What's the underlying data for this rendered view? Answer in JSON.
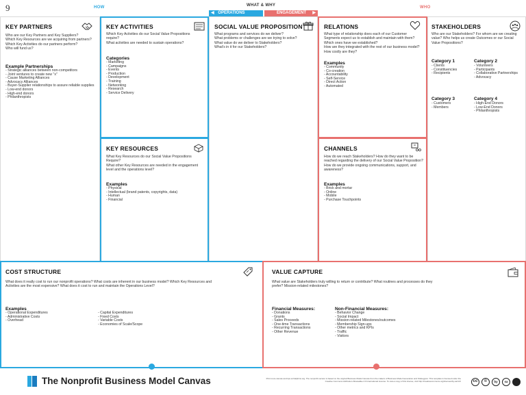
{
  "page_number": "9",
  "labels": {
    "how": "HOW",
    "what_why": "WHAT & WHY",
    "who": "WHO",
    "operations": "OPERATIONS",
    "engagement": "ENGAGEMENT"
  },
  "colors": {
    "blue": "#2aa8e0",
    "red": "#e8706e"
  },
  "key_partners": {
    "title": "KEY PARTNERS",
    "icon": "handshake-icon",
    "questions": "Who are our Key Partners and Key Suppliers?\nWhich Key Resources are we acquiring from partners?\nWhich Key Activities do our partners perform?\nWho will fund us?",
    "examples_title": "Example Partnerships",
    "examples": [
      "Strategic alliances between non-competitors",
      "Joint ventures to create new \"x\"",
      "Cause Marketing Alliances",
      "Advocacy Alliances",
      "Buyer-Supplier relationships to assure reliable supplies",
      "Low-end donors",
      "High-end donors",
      "Philanthropists"
    ]
  },
  "key_activities": {
    "title": "KEY ACTIVITIES",
    "icon": "checklist-icon",
    "questions": "Which Key Activities do our Social Value Propositions require?\nWhat activities are needed to sustain operations?",
    "categories_title": "Categories",
    "categories": [
      "Marketing",
      "Campaigns",
      "Events",
      "Production",
      "Development",
      "Training",
      "Networking",
      "Research",
      "Service Delivery"
    ]
  },
  "key_resources": {
    "title": "KEY RESOURCES",
    "icon": "boxes-icon",
    "questions": "What Key Resources do our Social Value Propositions Require?\nWhat other Key Resources are needed in the engagement level and the operations level?",
    "examples_title": "Examples",
    "examples": [
      "Physical",
      "Intellectual (brand patents, copyrights, data)",
      "Human",
      "Financial"
    ]
  },
  "social_value": {
    "title": "SOCIAL VALUE PROPOSITION",
    "icon": "gift-icon",
    "questions": "What programs and services do we deliver?\nWhat problems or challenges are we trying to solve?\nWhat value do we deliver to Stakeholders?\nWhat's in it for our Stakeholders?"
  },
  "relations": {
    "title": "RELATIONS",
    "icon": "heart-icon",
    "questions": "What type of relationship does each of our Customer Segments expect us to establish and maintain with them?\nWhich ones have we established?\nHow are they integrated with the rest of our business model?\nHow costly are they?",
    "examples_title": "Examples",
    "examples": [
      "Community",
      "Co-creation",
      "Accountability",
      "Self-Service",
      "Direct Action",
      "Automated"
    ]
  },
  "channels": {
    "title": "CHANNELS",
    "icon": "truck-icon",
    "questions": "How do we reach Stakeholders? How do they want to be reached regarding the delivery of our Social Value Proposition? How do we provide ongoing communications, support, and awareness?",
    "examples_title": "Examples",
    "examples": [
      "Brick and mortar",
      "Online",
      "Mobile",
      "Purchase Touchpoints"
    ]
  },
  "stakeholders": {
    "title": "STAKEHOLDERS",
    "icon": "people-icon",
    "questions": "Who are our Stakeholders? For whom are we creating value? Who helps us create Outcomes or our Social Value Propositions?",
    "cat1": {
      "title": "Category 1",
      "items": [
        "Clients",
        "Constituencies",
        "Recipients"
      ]
    },
    "cat2": {
      "title": "Category 2",
      "items": [
        "Volunteers",
        "Participants",
        "Collaborative Partnerships",
        "Advocacy"
      ]
    },
    "cat3": {
      "title": "Category 3",
      "items": [
        "Customers",
        "Members"
      ]
    },
    "cat4": {
      "title": "Category 4",
      "items": [
        "High-End Donors",
        "Low-End Donors",
        "Philanthropists"
      ]
    }
  },
  "cost_structure": {
    "title": "COST STRUCTURE",
    "icon": "price-tag-icon",
    "questions": "What does it really cost to run our nonprofit operations? What costs are inherent in our business model? Which Key Resources and Activities are the most expensive? What does it cost to run and maintain the Operations Level?",
    "examples_title": "Examples",
    "col1": [
      "Operational Expenditures",
      "Administrative Costs",
      "Overhead"
    ],
    "col2": [
      "Capital Expenditures",
      "Fixed Costs",
      "Variable Costs",
      "Economies of Scale/Scope"
    ]
  },
  "value_capture": {
    "title": "VALUE CAPTURE",
    "icon": "wallet-icon",
    "questions": "What value are Stakeholders truly willing to return or contribute? What routines and processes do they prefer? Mission-related milestones?",
    "fin_title": "Financial Measures:",
    "fin": [
      "Donations",
      "Grants",
      "Sales Proceeds",
      "One-time Transactions",
      "Recurring Transactions",
      "Other Revenue"
    ],
    "nonfin_title": "Non-Financial Measures:",
    "nonfin": [
      "Behavior Change",
      "Social Impact",
      "Mission-related Milestones/outcomes",
      "Membership Sign-ups",
      "Other metrics and KPIs",
      "Traffic",
      "Visitors"
    ]
  },
  "footer": {
    "brand": "The Nonprofit Business Model Canvas",
    "fine_print": "Print more canvas and tips at Nalphins.org. The nonprofit version is based on the original Business Model Canvas from the makers of Business Model Generation and Strategyzer. This template is licensed under the Creative Commons Attribution-Sharealike 4.0 International License. To view a copy of this license, visit http://creativecommons.org/licenses/by-sa/4.0/",
    "license_badges": [
      "cc",
      "©",
      "by",
      "sa"
    ]
  }
}
